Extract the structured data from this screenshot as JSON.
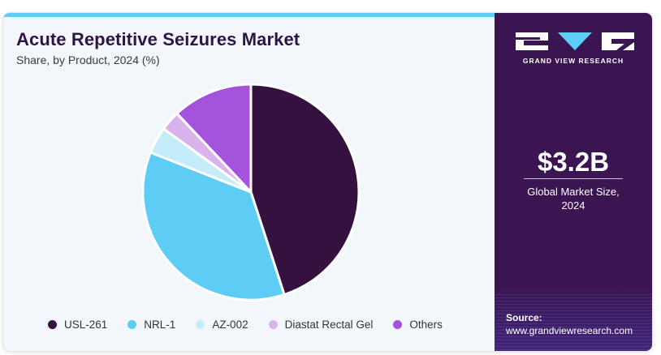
{
  "header": {
    "title": "Acute Repetitive Seizures Market",
    "subtitle": "Share, by Product, 2024 (%)"
  },
  "brand": {
    "name": "GRAND VIEW RESEARCH",
    "logo_colors": [
      "#ffffff",
      "#5ecdf5"
    ]
  },
  "stat": {
    "value": "$3.2B",
    "label_line1": "Global Market Size,",
    "label_line2": "2024"
  },
  "source": {
    "label": "Source:",
    "url": "www.grandviewresearch.com"
  },
  "colors": {
    "accent_bar": "#5ecdf5",
    "panel": "#3a1552",
    "background": "#f3f7fb"
  },
  "chart_data": {
    "type": "pie",
    "title": "Acute Repetitive Seizures Market",
    "subtitle": "Share, by Product, 2024 (%)",
    "legend_position": "bottom",
    "categories": [
      "USL-261",
      "NRL-1",
      "AZ-002",
      "Diastat Rectal Gel",
      "Others"
    ],
    "values": [
      45,
      36,
      4,
      3,
      12
    ],
    "colors": [
      "#35113f",
      "#5ecdf5",
      "#c4ecfb",
      "#d9b4ec",
      "#a552dc"
    ]
  }
}
